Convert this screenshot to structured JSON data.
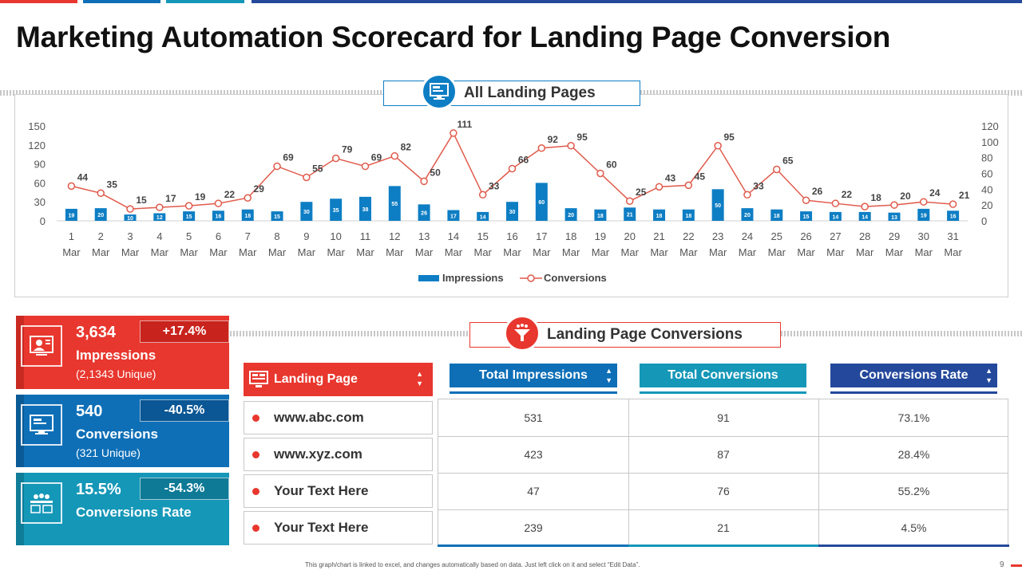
{
  "page_title": "Marketing Automation Scorecard for Landing Page Conversion",
  "colors": {
    "red": "#e8372e",
    "blue": "#0e6fb7",
    "teal": "#1597b8",
    "navy": "#24499c",
    "bar": "#0e7ec4",
    "line": "#e05a4b"
  },
  "chart_banner": {
    "label": "All Landing Pages",
    "icon": "monitor-icon"
  },
  "chart_data": {
    "type": "bar",
    "title": "All Landing Pages",
    "categories": [
      "1 Mar",
      "2 Mar",
      "3 Mar",
      "4 Mar",
      "5 Mar",
      "6 Mar",
      "7 Mar",
      "8 Mar",
      "9 Mar",
      "10 Mar",
      "11 Mar",
      "12 Mar",
      "13 Mar",
      "14 Mar",
      "15 Mar",
      "16 Mar",
      "17 Mar",
      "18 Mar",
      "19 Mar",
      "20 Mar",
      "21 Mar",
      "22 Mar",
      "23 Mar",
      "24 Mar",
      "25 Mar",
      "26 Mar",
      "27 Mar",
      "28 Mar",
      "29 Mar",
      "30 Mar",
      "31 Mar"
    ],
    "series": [
      {
        "name": "Impressions",
        "type": "bar",
        "axis": "left",
        "values": [
          19,
          20,
          10,
          12,
          15,
          16,
          18,
          15,
          30,
          35,
          38,
          55,
          26,
          17,
          14,
          30,
          60,
          20,
          18,
          21,
          18,
          18,
          50,
          20,
          18,
          15,
          14,
          14,
          13,
          19,
          16
        ]
      },
      {
        "name": "Conversions",
        "type": "line",
        "axis": "right",
        "values": [
          44,
          35,
          15,
          17,
          19,
          22,
          29,
          69,
          55,
          79,
          69,
          82,
          50,
          111,
          33,
          66,
          92,
          95,
          60,
          25,
          43,
          45,
          95,
          33,
          65,
          26,
          22,
          18,
          20,
          24,
          21
        ]
      }
    ],
    "ylim_left": [
      0,
      150
    ],
    "yticks_left": [
      0,
      30,
      60,
      90,
      120,
      150
    ],
    "ylim_right": [
      0,
      120
    ],
    "yticks_right": [
      0,
      20,
      40,
      60,
      80,
      100,
      120
    ],
    "legend": "bottom"
  },
  "kpis": [
    {
      "value": "3,634",
      "label": "Impressions",
      "sub": "(2,1343 Unique)",
      "change": "+17.4%",
      "icon": "user-presentation-icon"
    },
    {
      "value": "540",
      "label": "Conversions",
      "sub": "(321 Unique)",
      "change": "-40.5%",
      "icon": "monitor-icon"
    },
    {
      "value": "15.5%",
      "label": "Conversions Rate",
      "sub": "",
      "change": "-54.3%",
      "icon": "group-icon"
    }
  ],
  "conversions_banner": {
    "label": "Landing Page Conversions",
    "icon": "funnel-icon"
  },
  "table": {
    "headers": {
      "landing_page": "Landing Page",
      "total_impressions": "Total Impressions",
      "total_conversions": "Total Conversions",
      "conversions_rate": "Conversions Rate"
    },
    "rows": [
      {
        "page": "www.abc.com",
        "impressions": "531",
        "conversions": "91",
        "rate": "73.1%"
      },
      {
        "page": "www.xyz.com",
        "impressions": "423",
        "conversions": "87",
        "rate": "28.4%"
      },
      {
        "page": "Your Text Here",
        "impressions": "47",
        "conversions": "76",
        "rate": "55.2%"
      },
      {
        "page": "Your Text Here",
        "impressions": "239",
        "conversions": "21",
        "rate": "4.5%"
      }
    ]
  },
  "footer_note": "This graph/chart is linked to excel, and changes automatically based on data. Just left click on it and select “Edit Data”.",
  "page_number": "9"
}
